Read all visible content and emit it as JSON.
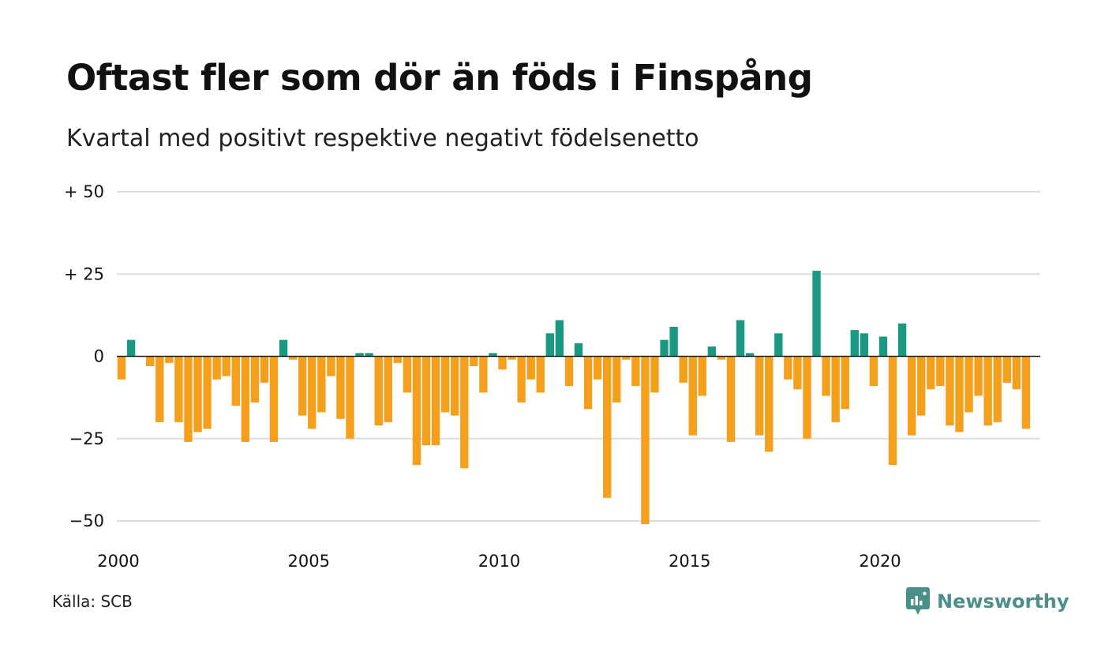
{
  "title": "Oftast fler som dör än föds i Finspång",
  "subtitle": "Kvartal med positivt respektive negativt födelsenetto",
  "source": "Källa: SCB",
  "brand": {
    "name": "Newsworthy",
    "icon": "newsworthy-logo-icon"
  },
  "colors": {
    "positive": "#1a9882",
    "negative": "#f59f1c",
    "grid": "#dddddd",
    "zero": "#222222"
  },
  "chart_data": {
    "type": "bar",
    "title": "Oftast fler som dör än föds i Finspång",
    "subtitle": "Kvartal med positivt respektive negativt födelsenetto",
    "xlabel": "",
    "ylabel": "",
    "ylim": [
      -50,
      50
    ],
    "xlim": [
      2000,
      2024.25
    ],
    "grid": true,
    "legend": "none",
    "y_ticks": [
      {
        "value": 50,
        "label": "+ 50"
      },
      {
        "value": 25,
        "label": "+ 25"
      },
      {
        "value": 0,
        "label": "0"
      },
      {
        "value": -25,
        "label": "−25"
      },
      {
        "value": -50,
        "label": "−50"
      }
    ],
    "x_ticks": [
      {
        "value": 2000,
        "label": "2000"
      },
      {
        "value": 2005,
        "label": "2005"
      },
      {
        "value": 2010,
        "label": "2010"
      },
      {
        "value": 2015,
        "label": "2015"
      },
      {
        "value": 2020,
        "label": "2020"
      }
    ],
    "quarters_start": "2000-Q1",
    "values": [
      -7,
      5,
      0,
      -3,
      -20,
      -2,
      -20,
      -26,
      -23,
      -22,
      -7,
      -6,
      -15,
      -26,
      -14,
      -8,
      -26,
      5,
      -1,
      -18,
      -22,
      -17,
      -6,
      -19,
      -25,
      1,
      1,
      -21,
      -20,
      -2,
      -11,
      -33,
      -27,
      -27,
      -17,
      -18,
      -34,
      -3,
      -11,
      1,
      -4,
      -1,
      -14,
      -7,
      -11,
      7,
      11,
      -9,
      4,
      -16,
      -7,
      -43,
      -14,
      -1,
      -9,
      -51,
      -11,
      5,
      9,
      -8,
      -24,
      -12,
      3,
      -1,
      -26,
      11,
      1,
      -24,
      -29,
      7,
      -7,
      -10,
      -25,
      26,
      -12,
      -20,
      -16,
      8,
      7,
      -9,
      6,
      -33,
      10,
      -24,
      -18,
      -10,
      -9,
      -21,
      -23,
      -17,
      -12,
      -21,
      -20,
      -8,
      -10,
      -22
    ]
  }
}
